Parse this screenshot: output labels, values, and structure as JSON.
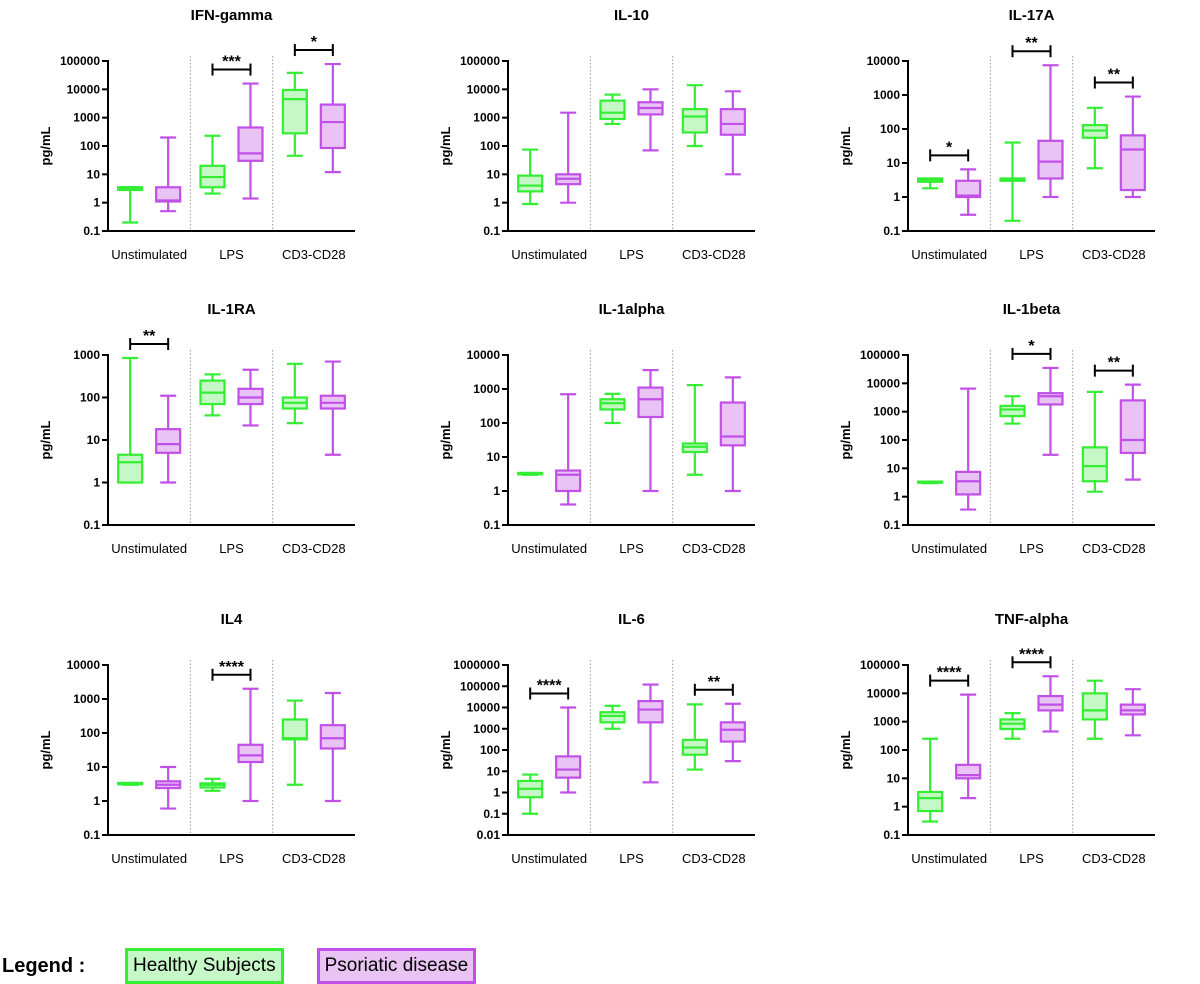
{
  "legend": {
    "title": "Legend :",
    "items": [
      {
        "label": "Healthy Subjects",
        "stroke": "#33ee33",
        "fill": "#c6f7c6"
      },
      {
        "label": "Psoriatic disease",
        "stroke": "#c050e8",
        "fill": "#e8c3f3"
      }
    ]
  },
  "chart_data": [
    {
      "type": "box",
      "title": "IFN-gamma",
      "ylabel": "pg/mL",
      "yscale": "log",
      "ylim": [
        0.1,
        100000
      ],
      "categories": [
        "Unstimulated",
        "LPS",
        "CD3-CD28"
      ],
      "series": [
        {
          "name": "Healthy Subjects",
          "boxes": [
            [
              0.2,
              2.8,
              3.2,
              3.5,
              3.5
            ],
            [
              2.1,
              3.5,
              8,
              20,
              230
            ],
            [
              45,
              280,
              4500,
              9500,
              38000
            ]
          ]
        },
        {
          "name": "Psoriatic disease",
          "boxes": [
            [
              0.5,
              1.1,
              1.2,
              3.5,
              200
            ],
            [
              1.4,
              30,
              55,
              450,
              16000
            ],
            [
              12,
              85,
              700,
              2900,
              78000
            ]
          ]
        }
      ],
      "significance": [
        "",
        "***",
        "*"
      ]
    },
    {
      "type": "box",
      "title": "IL-10",
      "ylabel": "pg/mL",
      "yscale": "log",
      "ylim": [
        0.1,
        100000
      ],
      "categories": [
        "Unstimulated",
        "LPS",
        "CD3-CD28"
      ],
      "series": [
        {
          "name": "Healthy Subjects",
          "boxes": [
            [
              0.9,
              2.5,
              4,
              9,
              75
            ],
            [
              600,
              900,
              1500,
              4000,
              6500
            ],
            [
              100,
              300,
              1100,
              2000,
              14000
            ]
          ]
        },
        {
          "name": "Psoriatic disease",
          "boxes": [
            [
              1,
              4.5,
              7,
              10,
              1500
            ],
            [
              70,
              1300,
              2200,
              3500,
              10000
            ],
            [
              10,
              250,
              600,
              2000,
              8500
            ]
          ]
        }
      ],
      "significance": [
        "",
        "",
        ""
      ]
    },
    {
      "type": "box",
      "title": "IL-17A",
      "ylabel": "pg/mL",
      "yscale": "log",
      "ylim": [
        0.1,
        10000
      ],
      "categories": [
        "Unstimulated",
        "LPS",
        "CD3-CD28"
      ],
      "series": [
        {
          "name": "Healthy Subjects",
          "boxes": [
            [
              1.8,
              2.8,
              3.2,
              3.5,
              3.5
            ],
            [
              0.2,
              3,
              3.2,
              3.5,
              40
            ],
            [
              7,
              55,
              90,
              130,
              420
            ]
          ]
        },
        {
          "name": "Psoriatic disease",
          "boxes": [
            [
              0.3,
              1,
              1.1,
              3,
              6.5
            ],
            [
              1,
              3.5,
              11,
              45,
              7500
            ],
            [
              1,
              1.6,
              25,
              65,
              900
            ]
          ]
        }
      ],
      "significance": [
        "*",
        "**",
        "**"
      ]
    },
    {
      "type": "box",
      "title": "IL-1RA",
      "ylabel": "pg/mL",
      "yscale": "log",
      "ylim": [
        0.1,
        1000
      ],
      "categories": [
        "Unstimulated",
        "LPS",
        "CD3-CD28"
      ],
      "series": [
        {
          "name": "Healthy Subjects",
          "boxes": [
            [
              1,
              1,
              3,
              4.5,
              850
            ],
            [
              38,
              70,
              130,
              250,
              350
            ],
            [
              25,
              55,
              75,
              100,
              620
            ]
          ]
        },
        {
          "name": "Psoriatic disease",
          "boxes": [
            [
              1,
              5,
              8,
              18,
              110
            ],
            [
              22,
              70,
              100,
              160,
              450
            ],
            [
              4.5,
              55,
              75,
              110,
              700
            ]
          ]
        }
      ],
      "significance": [
        "**",
        "",
        ""
      ]
    },
    {
      "type": "box",
      "title": "IL-1alpha",
      "ylabel": "pg/mL",
      "yscale": "log",
      "ylim": [
        0.1,
        10000
      ],
      "categories": [
        "Unstimulated",
        "LPS",
        "CD3-CD28"
      ],
      "series": [
        {
          "name": "Healthy Subjects",
          "boxes": [
            [
              3,
              3.1,
              3.2,
              3.4,
              3.4
            ],
            [
              100,
              250,
              380,
              500,
              720
            ],
            [
              3,
              14,
              20,
              25,
              1300
            ]
          ]
        },
        {
          "name": "Psoriatic disease",
          "boxes": [
            [
              0.4,
              1,
              3,
              4,
              700
            ],
            [
              1,
              150,
              500,
              1100,
              3600
            ],
            [
              1,
              22,
              40,
              400,
              2200
            ]
          ]
        }
      ],
      "significance": [
        "",
        "",
        ""
      ]
    },
    {
      "type": "box",
      "title": "IL-1beta",
      "ylabel": "pg/mL",
      "yscale": "log",
      "ylim": [
        0.1,
        100000
      ],
      "categories": [
        "Unstimulated",
        "LPS",
        "CD3-CD28"
      ],
      "series": [
        {
          "name": "Healthy Subjects",
          "boxes": [
            [
              3,
              3.1,
              3.2,
              3.4,
              3.4
            ],
            [
              380,
              700,
              1200,
              1600,
              3500
            ],
            [
              1.5,
              3.5,
              12,
              55,
              5000
            ]
          ]
        },
        {
          "name": "Psoriatic disease",
          "boxes": [
            [
              0.35,
              1.2,
              3.5,
              7.5,
              6500
            ],
            [
              30,
              1800,
              3500,
              4500,
              35000
            ],
            [
              4,
              35,
              100,
              2500,
              9000
            ]
          ]
        }
      ],
      "significance": [
        "",
        "*",
        "**"
      ]
    },
    {
      "type": "box",
      "title": "IL4",
      "ylabel": "pg/mL",
      "yscale": "log",
      "ylim": [
        0.1,
        10000
      ],
      "categories": [
        "Unstimulated",
        "LPS",
        "CD3-CD28"
      ],
      "series": [
        {
          "name": "Healthy Subjects",
          "boxes": [
            [
              3,
              3.1,
              3.2,
              3.4,
              3.4
            ],
            [
              2,
              2.5,
              3,
              3.3,
              4.5
            ],
            [
              3,
              65,
              70,
              250,
              900
            ]
          ]
        },
        {
          "name": "Psoriatic disease",
          "boxes": [
            [
              0.6,
              2.4,
              3,
              3.8,
              10
            ],
            [
              1,
              14,
              22,
              45,
              2000
            ],
            [
              1,
              35,
              70,
              170,
              1500
            ]
          ]
        }
      ],
      "significance": [
        "",
        "****",
        ""
      ]
    },
    {
      "type": "box",
      "title": "IL-6",
      "ylabel": "pg/mL",
      "yscale": "log",
      "ylim": [
        0.01,
        1000000
      ],
      "categories": [
        "Unstimulated",
        "LPS",
        "CD3-CD28"
      ],
      "series": [
        {
          "name": "Healthy Subjects",
          "boxes": [
            [
              0.1,
              0.6,
              1.5,
              3.5,
              7
            ],
            [
              1000,
              2000,
              4000,
              6000,
              12000
            ],
            [
              12,
              60,
              130,
              300,
              14000
            ]
          ]
        },
        {
          "name": "Psoriatic disease",
          "boxes": [
            [
              1,
              5,
              12,
              50,
              10000
            ],
            [
              3,
              2000,
              8000,
              20000,
              120000
            ],
            [
              30,
              250,
              900,
              2000,
              15000
            ]
          ]
        }
      ],
      "significance": [
        "****",
        "",
        "**"
      ]
    },
    {
      "type": "box",
      "title": "TNF-alpha",
      "ylabel": "pg/mL",
      "yscale": "log",
      "ylim": [
        0.1,
        100000
      ],
      "categories": [
        "Unstimulated",
        "LPS",
        "CD3-CD28"
      ],
      "series": [
        {
          "name": "Healthy Subjects",
          "boxes": [
            [
              0.3,
              0.7,
              2,
              3.3,
              250
            ],
            [
              250,
              550,
              850,
              1200,
              2000
            ],
            [
              250,
              1200,
              2500,
              10000,
              28000
            ]
          ]
        },
        {
          "name": "Psoriatic disease",
          "boxes": [
            [
              2,
              10,
              13,
              30,
              9000
            ],
            [
              450,
              2500,
              4000,
              8000,
              40000
            ],
            [
              330,
              1800,
              2500,
              4000,
              14000
            ]
          ]
        }
      ],
      "significance": [
        "****",
        "****",
        ""
      ]
    }
  ]
}
